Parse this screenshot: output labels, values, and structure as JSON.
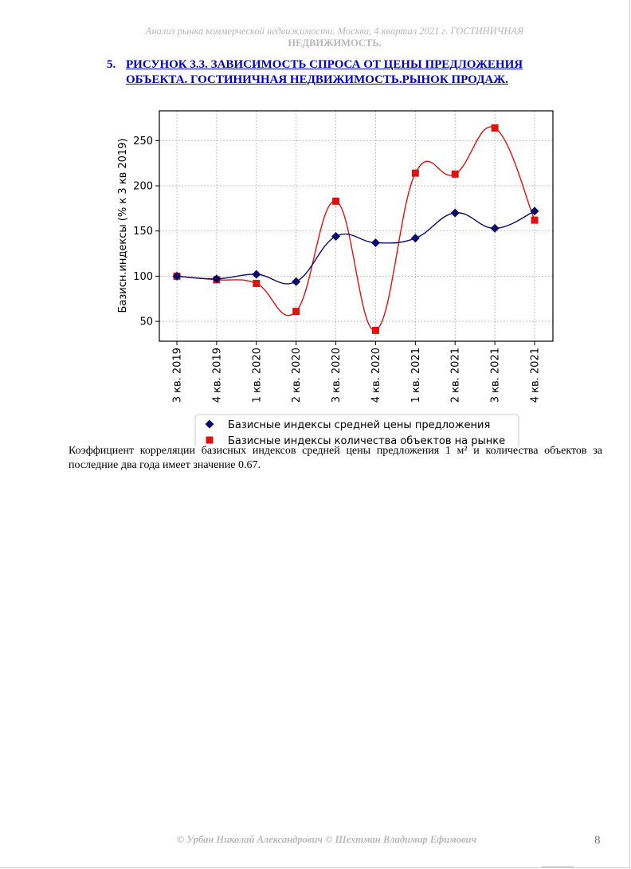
{
  "header": {
    "line1": "Анализ рынка коммерческой недвижимости.   Москва, 4 квартал 2021 г.   ГОСТИНИЧНАЯ",
    "line2": "НЕДВИЖИМОСТЬ."
  },
  "heading": {
    "number": "5.",
    "line1": "РИСУНОК 3.3. ЗАВИСИМОСТЬ СПРОСА ОТ ЦЕНЫ ПРЕДЛОЖЕНИЯ",
    "line2": "ОБЪЕКТА.  ГОСТИНИЧНАЯ НЕДВИЖИМОСТЬ.РЫНОК ПРОДАЖ."
  },
  "chart_data": {
    "type": "line",
    "categories": [
      "3 кв. 2019",
      "4 кв. 2019",
      "1 кв. 2020",
      "2 кв. 2020",
      "3 кв. 2020",
      "4 кв. 2020",
      "1 кв. 2021",
      "2 кв. 2021",
      "3 кв. 2021",
      "4 кв. 2021"
    ],
    "series": [
      {
        "name": "Базисные индексы средней цены предложения",
        "values": [
          100,
          97,
          102,
          94,
          144,
          137,
          142,
          170,
          153,
          172
        ],
        "color": "#0b0b6e",
        "marker": "diamond"
      },
      {
        "name": "Базисные индексы количества объектов на рынке",
        "values": [
          100,
          96,
          92,
          61,
          183,
          40,
          214,
          213,
          264,
          162
        ],
        "color": "#e31010",
        "marker": "square"
      }
    ],
    "ylabel": "Базисн.индексы (% к 3 кв 2019)",
    "xlabel": "",
    "ylim": [
      28,
      283
    ],
    "yticks": [
      50,
      100,
      150,
      200,
      250
    ],
    "grid": true,
    "legend": "bottom"
  },
  "paragraph": {
    "text": "Коэффициент корреляции базисных индексов средней цены предложения 1 м² и количества объектов за последние два года имеет значение 0.67."
  },
  "footer": {
    "text": "© Урбан Николай Александрович   © Шехтман Владимир Ефимович",
    "page_number": "8"
  }
}
